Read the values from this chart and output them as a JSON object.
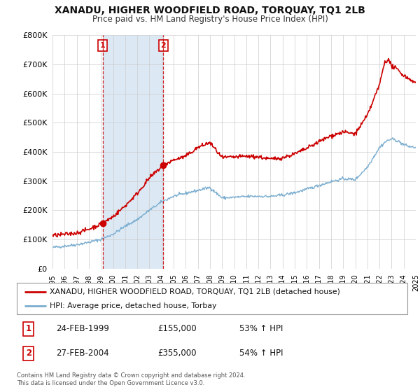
{
  "title": "XANADU, HIGHER WOODFIELD ROAD, TORQUAY, TQ1 2LB",
  "subtitle": "Price paid vs. HM Land Registry's House Price Index (HPI)",
  "legend_line1": "XANADU, HIGHER WOODFIELD ROAD, TORQUAY, TQ1 2LB (detached house)",
  "legend_line2": "HPI: Average price, detached house, Torbay",
  "footer1": "Contains HM Land Registry data © Crown copyright and database right 2024.",
  "footer2": "This data is licensed under the Open Government Licence v3.0.",
  "sale1_date": "24-FEB-1999",
  "sale1_price": "£155,000",
  "sale1_hpi": "53% ↑ HPI",
  "sale2_date": "27-FEB-2004",
  "sale2_price": "£355,000",
  "sale2_hpi": "54% ↑ HPI",
  "red_color": "#cc0000",
  "blue_color": "#7aadcf",
  "shade_color": "#dce9f5",
  "ylim": [
    0,
    800000
  ],
  "yticks": [
    0,
    100000,
    200000,
    300000,
    400000,
    500000,
    600000,
    700000,
    800000
  ],
  "ytick_labels": [
    "£0",
    "£100K",
    "£200K",
    "£300K",
    "£400K",
    "£500K",
    "£600K",
    "£700K",
    "£800K"
  ],
  "sale1_x": 1999.14,
  "sale1_y": 155000,
  "sale2_x": 2004.16,
  "sale2_y": 355000,
  "vline1_x": 1999.14,
  "vline2_x": 2004.16,
  "xlim": [
    1995,
    2025
  ]
}
